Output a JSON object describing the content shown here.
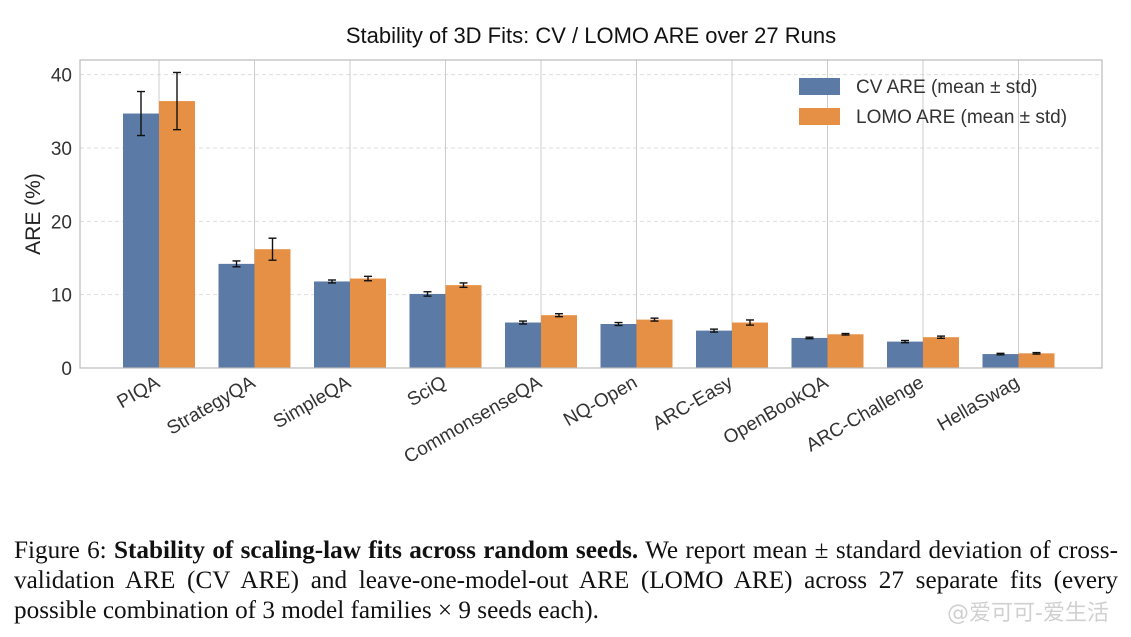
{
  "chart_data": {
    "type": "bar",
    "title": "Stability of 3D Fits: CV / LOMO ARE over 27 Runs",
    "xlabel": "",
    "ylabel": "ARE (%)",
    "ylim": [
      0,
      42
    ],
    "yticks": [
      0,
      10,
      20,
      30,
      40
    ],
    "grid": true,
    "legend_position": "top-right",
    "categories": [
      "PIQA",
      "StrategyQA",
      "SimpleQA",
      "SciQ",
      "CommonsenseQA",
      "NQ-Open",
      "ARC-Easy",
      "OpenBookQA",
      "ARC-Challenge",
      "HellaSwag"
    ],
    "series": [
      {
        "name": "CV ARE (mean ± std)",
        "color": "#5b7aa5",
        "values": [
          34.7,
          14.2,
          11.8,
          10.1,
          6.2,
          6.0,
          5.1,
          4.1,
          3.6,
          1.9
        ],
        "errors": [
          3.0,
          0.4,
          0.2,
          0.3,
          0.2,
          0.2,
          0.2,
          0.1,
          0.15,
          0.1
        ]
      },
      {
        "name": "LOMO ARE (mean ± std)",
        "color": "#e69045",
        "values": [
          36.4,
          16.2,
          12.2,
          11.3,
          7.2,
          6.6,
          6.2,
          4.6,
          4.2,
          2.0
        ],
        "errors": [
          3.9,
          1.5,
          0.3,
          0.3,
          0.2,
          0.2,
          0.35,
          0.1,
          0.15,
          0.1
        ]
      }
    ]
  },
  "caption": {
    "label": "Figure 6:",
    "bold": "Stability of scaling-law fits across random seeds.",
    "text": "We report mean ± standard deviation of cross-validation ARE (CV ARE) and leave-one-model-out ARE (LOMO ARE) across 27 separate fits (every possible combination of 3 model families × 9 seeds each)."
  },
  "watermark": "@爱可可-爱生活"
}
